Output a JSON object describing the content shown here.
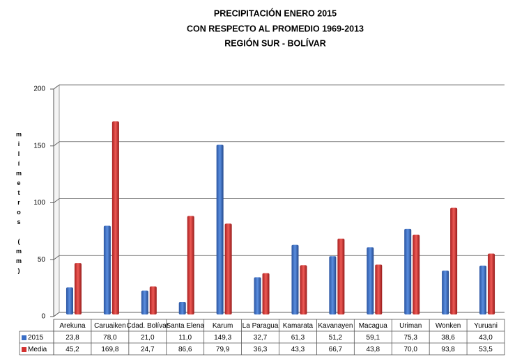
{
  "chart_data": {
    "type": "bar",
    "title": [
      "PRECIPITACIÓN ENERO 2015",
      "CON RESPECTO AL PROMEDIO 1969-2013",
      "REGIÓN SUR - BOLÍVAR"
    ],
    "y_label": "milímetros (mm)",
    "categories": [
      "Arekuna",
      "Caruaiken",
      "Cdad. Bolívar",
      "Santa Elena",
      "Karum",
      "La Paragua",
      "Kamarata",
      "Kavanayen",
      "Macagua",
      "Uriman",
      "Wonken",
      "Yuruani"
    ],
    "series": [
      {
        "name": "2015",
        "color": "#3b6fc6",
        "values": [
          23.8,
          78.0,
          21.0,
          11.0,
          149.3,
          32.7,
          61.3,
          51.2,
          59.1,
          75.3,
          38.6,
          43.0
        ],
        "value_labels": [
          "23,8",
          "78,0",
          "21,0",
          "11,0",
          "149,3",
          "32,7",
          "61,3",
          "51,2",
          "59,1",
          "75,3",
          "38,6",
          "43,0"
        ]
      },
      {
        "name": "Media",
        "color": "#d3312f",
        "values": [
          45.2,
          169.8,
          24.7,
          86.6,
          79.9,
          36.3,
          43.3,
          66.7,
          43.8,
          70.0,
          93.8,
          53.5
        ],
        "value_labels": [
          "45,2",
          "169,8",
          "24,7",
          "86,6",
          "79,9",
          "36,3",
          "43,3",
          "66,7",
          "43,8",
          "70,0",
          "93,8",
          "53,5"
        ]
      }
    ],
    "ylim": [
      0,
      200
    ],
    "yticks": [
      0,
      50,
      100,
      150,
      200
    ],
    "grid": true
  }
}
